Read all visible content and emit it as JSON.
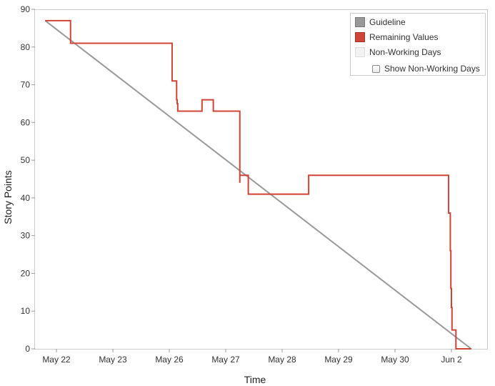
{
  "chart_data": {
    "type": "line",
    "xlabel": "Time",
    "ylabel": "Story Points",
    "ylim": [
      0,
      90
    ],
    "y_ticks": [
      0,
      10,
      20,
      30,
      40,
      50,
      60,
      70,
      80,
      90
    ],
    "x_ticks": [
      "May 22",
      "May 23",
      "May 26",
      "May 27",
      "May 28",
      "May 29",
      "May 30",
      "Jun 2"
    ],
    "grid": false,
    "legend_position": "top-right",
    "colors": {
      "guideline": "#999999",
      "remaining": "#d04437",
      "non_working": "#f2f2f2"
    },
    "series": [
      {
        "name": "Guideline",
        "type": "line",
        "x": [
          -0.2,
          7.35
        ],
        "y": [
          87,
          0
        ]
      },
      {
        "name": "Remaining Values",
        "type": "step",
        "x": [
          -0.2,
          0.25,
          0.25,
          1.5,
          1.5,
          1.6,
          1.6,
          1.62,
          1.62,
          1.63,
          1.63,
          2.05,
          2.05,
          2.13,
          2.13,
          2.14,
          2.14,
          2.15,
          2.15,
          2.16,
          2.16,
          2.58,
          2.58,
          2.78,
          2.78,
          3.25,
          3.25,
          3.25,
          3.25,
          3.4,
          3.4,
          3.4,
          3.4,
          3.97,
          3.97,
          4.47,
          4.47,
          6.95,
          6.95,
          6.98,
          6.98,
          6.99,
          6.99,
          7.0,
          7.0,
          7.01,
          7.01,
          7.02,
          7.02,
          7.08,
          7.08,
          7.15,
          7.15,
          7.35
        ],
        "y": [
          87,
          87,
          81,
          81,
          81,
          81,
          81,
          81,
          81,
          81,
          81,
          81,
          71,
          71,
          66,
          66,
          65,
          65,
          63,
          63,
          63,
          63,
          66,
          66,
          63,
          63,
          44,
          49,
          46,
          46,
          41,
          44,
          41,
          41,
          41,
          41,
          46,
          46,
          36,
          36,
          26,
          26,
          16,
          16,
          11,
          11,
          5,
          5,
          5,
          5,
          0,
          0,
          0,
          0
        ]
      }
    ],
    "legend": {
      "entries": [
        "Guideline",
        "Remaining Values",
        "Non-Working Days"
      ],
      "toggle_label": "Show Non-Working Days",
      "toggle_checked": false
    }
  }
}
